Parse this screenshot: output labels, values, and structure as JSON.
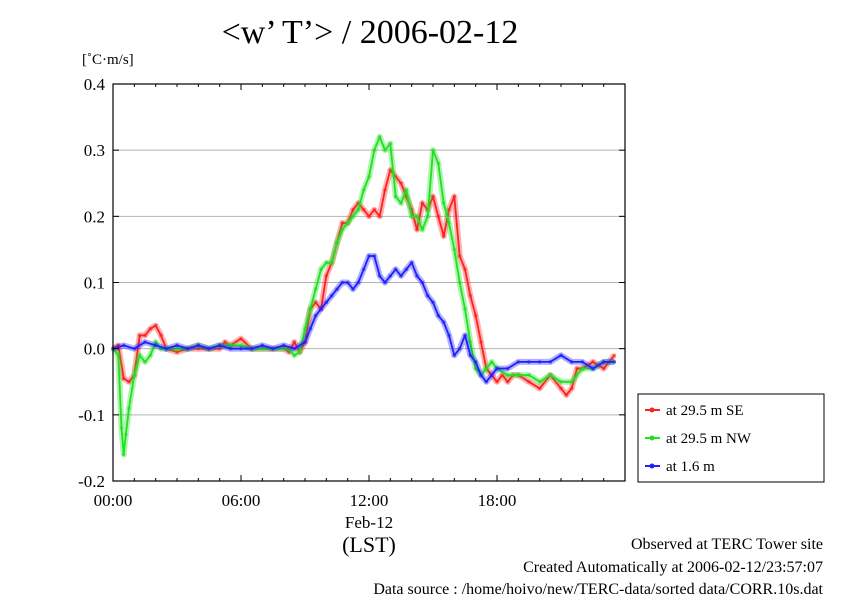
{
  "chart_data": {
    "type": "line",
    "title": "<w’ T’> / 2006-02-12",
    "ylabel": "[˚C·m/s]",
    "xlabel": "(LST)",
    "date_label": "Feb-12",
    "xlim": [
      0,
      24
    ],
    "ylim": [
      -0.2,
      0.4
    ],
    "x_ticks": [
      {
        "value": 0,
        "label": "00:00"
      },
      {
        "value": 6,
        "label": "06:00"
      },
      {
        "value": 12,
        "label": "12:00"
      },
      {
        "value": 18,
        "label": "18:00"
      }
    ],
    "y_ticks": [
      {
        "value": -0.2,
        "label": "-0.2"
      },
      {
        "value": -0.1,
        "label": "-0.1"
      },
      {
        "value": 0.0,
        "label": "0.0"
      },
      {
        "value": 0.1,
        "label": "0.1"
      },
      {
        "value": 0.2,
        "label": "0.2"
      },
      {
        "value": 0.3,
        "label": "0.3"
      },
      {
        "value": 0.4,
        "label": "0.4"
      }
    ],
    "grid": "horizontal",
    "legend_position": "right",
    "series": [
      {
        "name": "at 29.5 m SE",
        "color": "#ff2020",
        "x": [
          0.0,
          0.25,
          0.5,
          0.75,
          1.0,
          1.25,
          1.5,
          1.75,
          2.0,
          2.25,
          2.5,
          3.0,
          3.5,
          4.0,
          4.5,
          5.0,
          5.25,
          5.5,
          6.0,
          6.5,
          7.0,
          7.5,
          8.0,
          8.25,
          8.5,
          8.75,
          9.0,
          9.25,
          9.5,
          9.75,
          10.0,
          10.25,
          10.5,
          10.75,
          11.0,
          11.25,
          11.5,
          11.75,
          12.0,
          12.25,
          12.5,
          12.75,
          13.0,
          13.25,
          13.5,
          13.75,
          14.0,
          14.25,
          14.5,
          14.75,
          15.0,
          15.25,
          15.5,
          15.75,
          16.0,
          16.25,
          16.5,
          16.75,
          17.0,
          17.25,
          17.5,
          17.75,
          18.0,
          18.25,
          18.5,
          18.75,
          19.0,
          19.5,
          20.0,
          20.5,
          21.0,
          21.25,
          21.5,
          21.75,
          22.0,
          22.5,
          23.0,
          23.5
        ],
        "values": [
          0.0,
          0.005,
          -0.045,
          -0.05,
          -0.04,
          0.02,
          0.02,
          0.03,
          0.035,
          0.02,
          0.0,
          -0.005,
          0.0,
          0.0,
          0.0,
          0.0,
          0.01,
          0.005,
          0.015,
          0.0,
          0.0,
          0.0,
          0.0,
          -0.005,
          0.01,
          -0.005,
          0.01,
          0.06,
          0.07,
          0.06,
          0.11,
          0.13,
          0.16,
          0.19,
          0.19,
          0.21,
          0.22,
          0.21,
          0.2,
          0.21,
          0.2,
          0.24,
          0.27,
          0.26,
          0.25,
          0.23,
          0.21,
          0.18,
          0.22,
          0.21,
          0.23,
          0.2,
          0.17,
          0.21,
          0.23,
          0.14,
          0.12,
          0.08,
          0.05,
          0.01,
          -0.03,
          -0.04,
          -0.05,
          -0.04,
          -0.05,
          -0.04,
          -0.04,
          -0.05,
          -0.06,
          -0.04,
          -0.06,
          -0.07,
          -0.06,
          -0.03,
          -0.03,
          -0.02,
          -0.03,
          -0.01
        ]
      },
      {
        "name": "at 29.5 m NW",
        "color": "#20e020",
        "x": [
          0.0,
          0.25,
          0.4,
          0.5,
          0.6,
          0.75,
          1.0,
          1.25,
          1.5,
          1.75,
          2.0,
          2.25,
          2.5,
          3.0,
          3.5,
          4.0,
          4.5,
          5.0,
          5.5,
          6.0,
          6.5,
          7.0,
          7.5,
          8.0,
          8.25,
          8.5,
          8.75,
          9.0,
          9.25,
          9.5,
          9.75,
          10.0,
          10.25,
          10.5,
          10.75,
          11.0,
          11.25,
          11.5,
          11.75,
          12.0,
          12.25,
          12.5,
          12.75,
          13.0,
          13.25,
          13.5,
          13.75,
          14.0,
          14.25,
          14.5,
          14.75,
          15.0,
          15.25,
          15.5,
          15.75,
          16.0,
          16.25,
          16.5,
          16.75,
          17.0,
          17.25,
          17.5,
          17.75,
          18.0,
          18.5,
          19.0,
          19.5,
          20.0,
          20.5,
          21.0,
          21.5,
          22.0,
          22.5,
          23.0,
          23.5
        ],
        "values": [
          0.0,
          -0.01,
          -0.12,
          -0.16,
          -0.13,
          -0.09,
          -0.04,
          -0.01,
          -0.02,
          -0.01,
          0.01,
          0.0,
          0.0,
          0.0,
          0.0,
          0.005,
          0.0,
          0.005,
          0.005,
          0.005,
          0.0,
          0.0,
          0.0,
          0.0,
          0.0,
          -0.01,
          -0.005,
          0.03,
          0.06,
          0.09,
          0.12,
          0.13,
          0.13,
          0.16,
          0.18,
          0.19,
          0.2,
          0.21,
          0.24,
          0.26,
          0.3,
          0.32,
          0.3,
          0.31,
          0.23,
          0.22,
          0.24,
          0.2,
          0.2,
          0.18,
          0.2,
          0.3,
          0.28,
          0.22,
          0.19,
          0.15,
          0.1,
          0.06,
          0.01,
          -0.03,
          -0.04,
          -0.03,
          -0.02,
          -0.03,
          -0.04,
          -0.04,
          -0.04,
          -0.05,
          -0.04,
          -0.05,
          -0.05,
          -0.03,
          -0.03,
          -0.02,
          -0.02
        ]
      },
      {
        "name": "at 1.6 m",
        "color": "#2020ff",
        "x": [
          0.0,
          0.5,
          1.0,
          1.5,
          2.0,
          2.5,
          3.0,
          3.5,
          4.0,
          4.5,
          5.0,
          5.5,
          6.0,
          6.5,
          7.0,
          7.5,
          8.0,
          8.5,
          9.0,
          9.25,
          9.5,
          9.75,
          10.0,
          10.25,
          10.5,
          10.75,
          11.0,
          11.25,
          11.5,
          11.75,
          12.0,
          12.25,
          12.5,
          12.75,
          13.0,
          13.25,
          13.5,
          13.75,
          14.0,
          14.25,
          14.5,
          14.75,
          15.0,
          15.25,
          15.5,
          15.75,
          16.0,
          16.25,
          16.5,
          16.75,
          17.0,
          17.25,
          17.5,
          17.75,
          18.0,
          18.5,
          19.0,
          19.5,
          20.0,
          20.5,
          21.0,
          21.5,
          22.0,
          22.5,
          23.0,
          23.5
        ],
        "values": [
          0.0,
          0.005,
          0.0,
          0.01,
          0.005,
          0.0,
          0.005,
          0.0,
          0.005,
          0.0,
          0.005,
          0.0,
          0.0,
          0.0,
          0.005,
          0.0,
          0.005,
          0.0,
          0.01,
          0.03,
          0.05,
          0.06,
          0.07,
          0.08,
          0.09,
          0.1,
          0.1,
          0.09,
          0.1,
          0.12,
          0.14,
          0.14,
          0.11,
          0.1,
          0.11,
          0.12,
          0.11,
          0.12,
          0.13,
          0.11,
          0.1,
          0.08,
          0.07,
          0.05,
          0.04,
          0.02,
          -0.01,
          0.0,
          0.02,
          -0.01,
          -0.02,
          -0.04,
          -0.05,
          -0.04,
          -0.03,
          -0.03,
          -0.02,
          -0.02,
          -0.02,
          -0.02,
          -0.01,
          -0.02,
          -0.02,
          -0.03,
          -0.02,
          -0.02
        ]
      }
    ]
  },
  "footer": {
    "line1": "Observed at TERC Tower site",
    "line2": "Created Automatically at 2006-02-12/23:57:07",
    "line3": "Data source : /home/hoivo/new/TERC-data/sorted  data/CORR.10s.dat"
  }
}
